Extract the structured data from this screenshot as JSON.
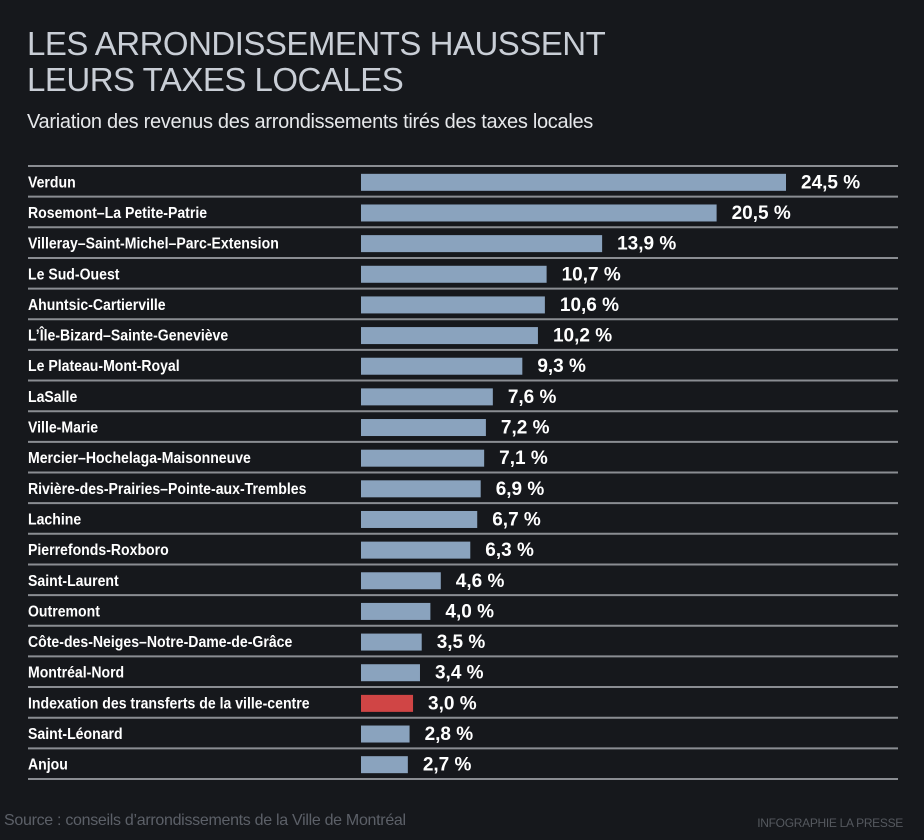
{
  "header": {
    "title_line1": "LES ARRONDISSEMENTS HAUSSENT",
    "title_line2": "LEURS TAXES LOCALES",
    "subtitle": "Variation des revenus des arrondissements tirés des taxes locales"
  },
  "footer": {
    "source": "Source : conseils d’arrondissements de la Ville de Montréal",
    "credit": "INFOGRAPHIE LA PRESSE"
  },
  "colors": {
    "background": "#16181c",
    "bar": "#8aa3be",
    "highlight_bar": "#d04545",
    "divider": "#8a8d92",
    "label": "#ffffff"
  },
  "chart_data": {
    "type": "bar",
    "orientation": "horizontal",
    "title": "LES ARRONDISSEMENTS HAUSSENT LEURS TAXES LOCALES",
    "subtitle": "Variation des revenus des arrondissements tirés des taxes locales",
    "xlabel": "",
    "ylabel": "",
    "unit": "%",
    "xlim": [
      0,
      24.5
    ],
    "grid": false,
    "legend": "none",
    "categories": [
      "Verdun",
      "Rosemont–La Petite-Patrie",
      "Villeray–Saint-Michel–Parc-Extension",
      "Le Sud-Ouest",
      "Ahuntsic-Cartierville",
      "L’Île-Bizard–Sainte-Geneviève",
      "Le Plateau-Mont-Royal",
      "LaSalle",
      "Ville-Marie",
      "Mercier–Hochelaga-Maisonneuve",
      "Rivière-des-Prairies–Pointe-aux-Trembles",
      "Lachine",
      "Pierrefonds-Roxboro",
      "Saint-Laurent",
      "Outremont",
      "Côte-des-Neiges–Notre-Dame-de-Grâce",
      "Montréal-Nord",
      "Indexation des transferts de la ville-centre",
      "Saint-Léonard",
      "Anjou"
    ],
    "values": [
      24.5,
      20.5,
      13.9,
      10.7,
      10.6,
      10.2,
      9.3,
      7.6,
      7.2,
      7.1,
      6.9,
      6.7,
      6.3,
      4.6,
      4.0,
      3.5,
      3.4,
      3.0,
      2.8,
      2.7
    ],
    "value_labels": [
      "24,5 %",
      "20,5 %",
      "13,9 %",
      "10,7 %",
      "10,6 %",
      "10,2 %",
      "9,3 %",
      "7,6 %",
      "7,2 %",
      "7,1 %",
      "6,9 %",
      "6,7 %",
      "6,3 %",
      "4,6 %",
      "4,0 %",
      "3,5 %",
      "3,4 %",
      "3,0 %",
      "2,8 %",
      "2,7 %"
    ],
    "highlighted": [
      "Indexation des transferts de la ville-centre"
    ]
  }
}
